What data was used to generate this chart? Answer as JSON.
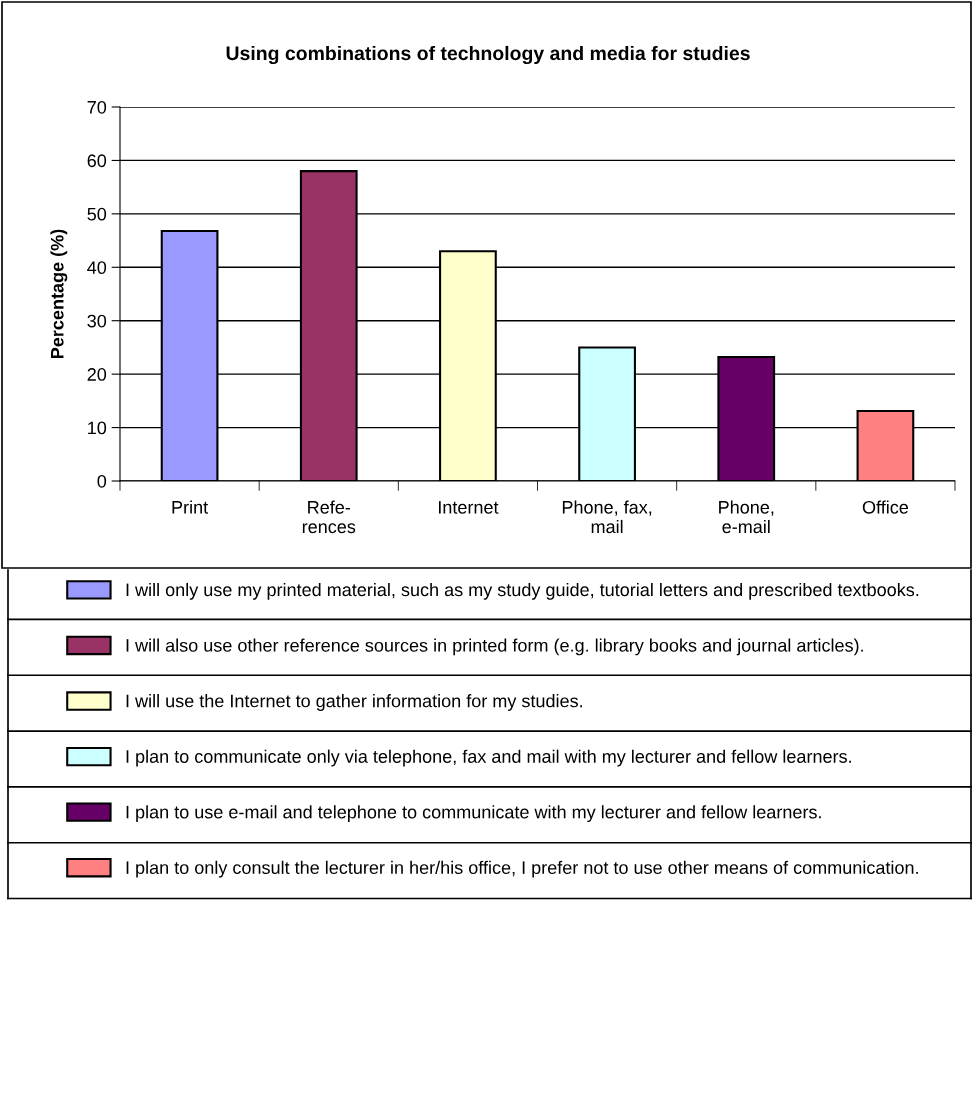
{
  "chart_data": {
    "type": "bar",
    "title": "Using combinations of technology and media for studies",
    "ylabel": "Percentage (%)",
    "categories": [
      "Print",
      "Refe-\nrences",
      "Internet",
      "Phone, fax,\nmail",
      "Phone,\ne-mail",
      "Office"
    ],
    "series": [
      {
        "name": "I will only use my printed material, such as my study guide, tutorial letters and prescribed textbooks.",
        "color": "#9999ff",
        "values": [
          46.8,
          null,
          null,
          null,
          null,
          null
        ]
      },
      {
        "name": "I will also use other reference sources in printed form (e.g. library books and journal articles).",
        "color": "#993366",
        "values": [
          null,
          58,
          null,
          null,
          null,
          null
        ]
      },
      {
        "name": "I will use the Internet to gather information for my studies.",
        "color": "#ffffcc",
        "values": [
          null,
          null,
          43,
          null,
          null,
          null
        ]
      },
      {
        "name": "I plan to communicate only via telephone, fax and mail with my lecturer and fellow learners.",
        "color": "#ccffff",
        "values": [
          null,
          null,
          null,
          25,
          null,
          null
        ]
      },
      {
        "name": "I plan to use e-mail and telephone to communicate with my lecturer and fellow learners.",
        "color": "#660066",
        "values": [
          null,
          null,
          null,
          null,
          23.2,
          null
        ]
      },
      {
        "name": "I plan to only consult the lecturer in her/his office, I prefer not to use other means of communication.",
        "color": "#ff8080",
        "values": [
          null,
          null,
          null,
          null,
          null,
          13.1
        ]
      }
    ],
    "ylim": [
      0,
      70
    ],
    "yticks": [
      0,
      10,
      20,
      30,
      40,
      50,
      60,
      70
    ],
    "grid": "y",
    "legend": "bottom"
  }
}
